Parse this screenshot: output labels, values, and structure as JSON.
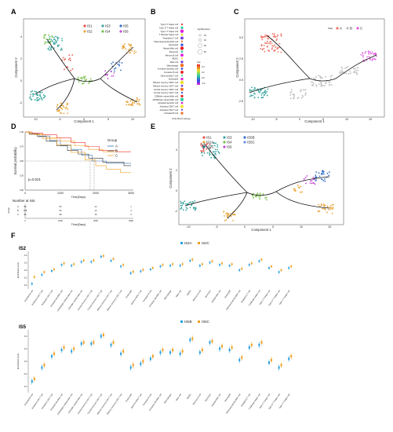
{
  "panel_labels": {
    "A": "A",
    "B": "B",
    "C": "C",
    "D": "D",
    "E": "E",
    "F": "F"
  },
  "colors": {
    "IS1": "#e8544e",
    "IS2": "#e8a53a",
    "IS3": "#3aa6a0",
    "IS4": "#78c04a",
    "IS5": "#3a6fc9",
    "IS6": "#c44fd6",
    "A": "#f07467",
    "B": "#bdbdbd",
    "C": "#e05be0",
    "surv_A": "#3c73b8",
    "surv_B": "#333333",
    "surv_C": "#f0a020",
    "IS2A": "#2aa0e0",
    "IS2C": "#f0a020",
    "IS5B": "#2aa0e0",
    "IS5C": "#f0a020",
    "trajectory": "#111111"
  },
  "panel_a": {
    "xlabel": "Component 1",
    "ylabel": "Component 2",
    "legend": [
      "IS1",
      "IS3",
      "IS5",
      "IS2",
      "IS4",
      "IS6"
    ],
    "xticks": [
      "-10",
      "-5",
      "0",
      "5",
      "10"
    ],
    "yticks": [
      "-2",
      "0",
      "2",
      "4"
    ]
  },
  "panel_b": {
    "xlabel": "FC4+PCAU\nsubtype",
    "rows": [
      "Type 2 T helper cell",
      "Type 17 T helper cell",
      "Type 1 T helper cell",
      "T follicular helper cell",
      "Regulatory T cell",
      "Plasmacytoid dendritic cell",
      "Neutrophil",
      "Natural killer cell",
      "Monocyte",
      "Memory B cell",
      "MDSC",
      "Mast cell",
      "Macrophage",
      "Immature dendritic cell",
      "Immature B cell",
      "Gamma delta T cell",
      "Eosinophil",
      "Effector memory CD8 T cell",
      "Effector memory CD4 T cell",
      "Central memory CD8 T cell",
      "Central memory CD4 T cell",
      "CD56dim natural killer cell",
      "CD56bright natural killer cell",
      "Activated dendritic cell",
      "Activated CD8 T cell",
      "Activated CD4 T cell",
      "Activated B cell"
    ],
    "size_title": "-log10(pvalue)",
    "size_levels": [
      "20",
      "40",
      "60",
      "80"
    ],
    "color_title": "size",
    "color_levels": [
      "0.4",
      "0.2",
      "0.0",
      "-0.2"
    ]
  },
  "panel_c": {
    "xlabel": "Component 1",
    "ylabel": "Component 2",
    "legend_title": "State",
    "legend": [
      "A",
      "B",
      "C"
    ],
    "xticks": [
      "-10",
      "-5",
      "0",
      "5",
      "10",
      "15"
    ],
    "yticks": [
      "-2.5",
      "0.0",
      "2.5",
      "5.0"
    ]
  },
  "panel_d": {
    "ylabel": "Survival probability",
    "xlabel": "Time(Days)",
    "legend_title": "Group",
    "legend": [
      "A",
      "B",
      "C"
    ],
    "pvalue": "p=0.021",
    "xticks": [
      "0",
      "1000",
      "2000",
      "3000"
    ],
    "yticks": [
      "0.00",
      "0.25",
      "0.50",
      "0.75",
      "1.00"
    ],
    "risk_title": "Number at risk",
    "risk_label": "Group",
    "risk_rows": [
      {
        "group": "A",
        "values": [
          "69",
          "50",
          "14",
          "1"
        ]
      },
      {
        "group": "B",
        "values": [
          "108",
          "54",
          "13",
          "3"
        ]
      },
      {
        "group": "C",
        "values": [
          "95",
          "38",
          "15",
          "3"
        ]
      }
    ]
  },
  "panel_e": {
    "xlabel": "Component 1",
    "ylabel": "Component 2",
    "legend": [
      "IS1",
      "IS3",
      "IS5B",
      "IS2A",
      "IS4",
      "IS5C",
      "IS2C",
      "IS6"
    ],
    "xticks": [
      "-10",
      "-5",
      "0",
      "5",
      "10",
      "15"
    ],
    "yticks": [
      "-2",
      "0",
      "2",
      "4"
    ]
  },
  "panel_f": {
    "ylabel": "Enrichment score",
    "group1_title": "IS2",
    "group1_legend": [
      "IS2A",
      "IS2C"
    ],
    "group2_title": "IS5",
    "group2_legend": [
      "IS5B",
      "IS5C"
    ],
    "cells": [
      "Activated B cell",
      "Activated CD4 T cell",
      "Activated CD8 T cell",
      "Activated dendritic cell",
      "CD56bright natural killer cell",
      "CD56dim natural killer cell",
      "Central memory CD4 T cell",
      "Central memory CD8 T cell",
      "Effector memory CD4 T cell",
      "Effector memory CD8 T cell",
      "Eosinophil",
      "Gamma delta T cell",
      "Immature B cell",
      "Immature dendritic cell",
      "Macrophage",
      "Mast cell",
      "MDSC",
      "Memory B cell",
      "Monocyte",
      "Natural killer cell",
      "Neutrophil",
      "Plasmacytoid dendritic cell",
      "Regulatory T cell",
      "T follicular helper cell",
      "Type 1 T helper cell",
      "Type 17 T helper cell",
      "Type 2 T helper cell"
    ],
    "yticks1": [
      "-0.4",
      "-0.2",
      "0.0",
      "0.2",
      "0.4"
    ],
    "yticks2": [
      "-0.4",
      "-0.2",
      "0.0",
      "0.2",
      "0.4"
    ],
    "series1": [
      {
        "name": "IS2A",
        "values": [
          -0.36,
          -0.12,
          -0.02,
          0.14,
          0.12,
          0.22,
          0.22,
          0.36,
          0.25,
          0.1,
          -0.08,
          -0.03,
          0.02,
          0.1,
          0.12,
          0.12,
          0.25,
          0.12,
          0.2,
          0.14,
          0.12,
          0.0,
          0.14,
          0.24,
          0.06,
          -0.05,
          0.06
        ]
      },
      {
        "name": "IS2C",
        "values": [
          -0.18,
          -0.05,
          0.02,
          0.18,
          0.16,
          0.26,
          0.26,
          0.38,
          0.3,
          0.14,
          -0.04,
          0.01,
          0.06,
          0.14,
          0.16,
          0.16,
          0.28,
          0.16,
          0.24,
          0.18,
          0.16,
          0.04,
          0.18,
          0.28,
          0.1,
          0.0,
          0.1
        ]
      }
    ],
    "series2": [
      {
        "name": "IS5B",
        "values": [
          -0.32,
          -0.1,
          0.08,
          0.18,
          0.16,
          0.28,
          0.28,
          0.4,
          0.26,
          0.12,
          -0.1,
          -0.04,
          0.04,
          0.14,
          0.14,
          0.12,
          0.34,
          0.14,
          0.3,
          0.2,
          0.18,
          0.02,
          0.22,
          0.26,
          -0.02,
          -0.1,
          0.04
        ]
      },
      {
        "name": "IS5C",
        "values": [
          -0.28,
          -0.06,
          0.12,
          0.22,
          0.2,
          0.3,
          0.3,
          0.42,
          0.3,
          0.16,
          -0.06,
          0.0,
          0.08,
          0.18,
          0.18,
          0.16,
          0.36,
          0.18,
          0.32,
          0.24,
          0.22,
          0.06,
          0.26,
          0.3,
          0.02,
          -0.06,
          0.08
        ]
      }
    ]
  }
}
